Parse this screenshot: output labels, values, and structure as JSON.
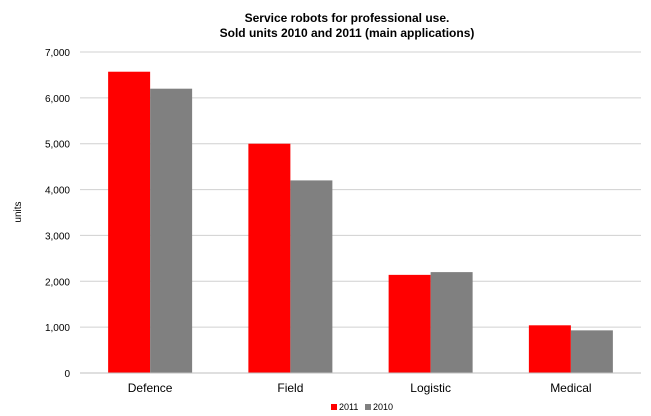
{
  "chart_data": {
    "type": "bar",
    "title": "Service robots for professional use.",
    "subtitle": "Sold units 2010 and 2011 (main applications)",
    "xlabel": "",
    "ylabel": "units",
    "categories": [
      "Defence",
      "Field",
      "Logistic",
      "Medical"
    ],
    "series": [
      {
        "name": "2011",
        "color": "#ff0000",
        "values": [
          6570,
          5000,
          2140,
          1040
        ]
      },
      {
        "name": "2010",
        "color": "#808080",
        "values": [
          6200,
          4200,
          2200,
          930
        ]
      }
    ],
    "ylim": [
      0,
      7000
    ],
    "yticks": [
      0,
      1000,
      2000,
      3000,
      4000,
      5000,
      6000,
      7000
    ],
    "ytick_labels": [
      "0",
      "1,000",
      "2,000",
      "3,000",
      "4,000",
      "5,000",
      "6,000",
      "7,000"
    ],
    "grid": true,
    "legend_position": "bottom"
  }
}
